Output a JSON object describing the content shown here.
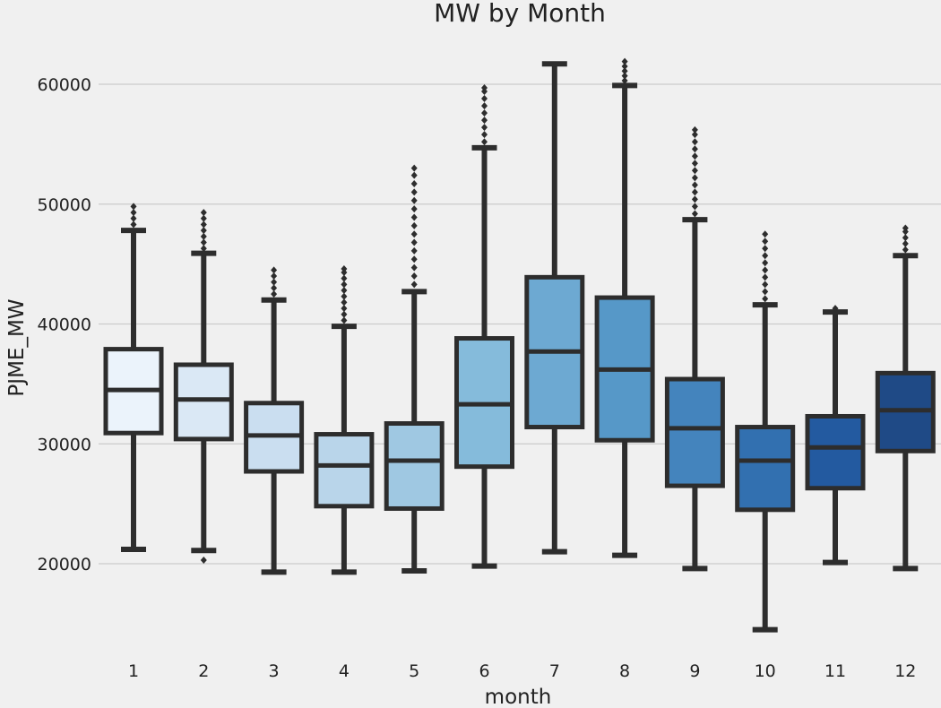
{
  "chart_data": {
    "type": "box",
    "title": "MW by Month",
    "xlabel": "month",
    "ylabel": "PJME_MW",
    "ylim": [
      13000,
      63500
    ],
    "yticks": [
      20000,
      30000,
      40000,
      50000,
      60000
    ],
    "grid": "horizontal",
    "categories": [
      "1",
      "2",
      "3",
      "4",
      "5",
      "6",
      "7",
      "8",
      "9",
      "10",
      "11",
      "12"
    ],
    "colors": [
      "#ebf3fb",
      "#dae8f5",
      "#cadef0",
      "#b9d5ea",
      "#9fc8e2",
      "#85bbdb",
      "#6da9d2",
      "#5698c8",
      "#4484bd",
      "#3270b0",
      "#235aa0",
      "#1f4a86"
    ],
    "edge_color": "#2d2d2d",
    "boxes": [
      {
        "month": "1",
        "whisker_low": 21200,
        "q1": 30900,
        "median": 34500,
        "q3": 37900,
        "whisker_high": 47800,
        "outliers_high": [
          48300,
          48800,
          49300,
          49800
        ]
      },
      {
        "month": "2",
        "whisker_low": 21100,
        "q1": 30400,
        "median": 33700,
        "q3": 36600,
        "whisker_high": 45900,
        "outliers_low": [
          20300
        ],
        "outliers_high": [
          46300,
          46800,
          47300,
          47800,
          48300,
          48800,
          49300
        ]
      },
      {
        "month": "3",
        "whisker_low": 19300,
        "q1": 27700,
        "median": 30700,
        "q3": 33400,
        "whisker_high": 42000,
        "outliers_high": [
          42500,
          43000,
          43500,
          44000,
          44500
        ]
      },
      {
        "month": "4",
        "whisker_low": 19300,
        "q1": 24800,
        "median": 28200,
        "q3": 30800,
        "whisker_high": 39800,
        "outliers_high": [
          40300,
          40800,
          41300,
          41800,
          42300,
          42800,
          43300,
          43800,
          44300,
          44600
        ]
      },
      {
        "month": "5",
        "whisker_low": 19400,
        "q1": 24600,
        "median": 28600,
        "q3": 31700,
        "whisker_high": 42700,
        "outliers_high": [
          43300,
          44000,
          44700,
          45400,
          46100,
          46800,
          47500,
          48200,
          48900,
          49600,
          50300,
          51000,
          51700,
          52400,
          53000
        ]
      },
      {
        "month": "6",
        "whisker_low": 19800,
        "q1": 28100,
        "median": 33300,
        "q3": 38800,
        "whisker_high": 54700,
        "outliers_high": [
          55200,
          55800,
          56400,
          57000,
          57600,
          58200,
          58800,
          59400,
          59700
        ]
      },
      {
        "month": "7",
        "whisker_low": 21000,
        "q1": 31400,
        "median": 37700,
        "q3": 43900,
        "whisker_high": 61700,
        "outliers_high": []
      },
      {
        "month": "8",
        "whisker_low": 20700,
        "q1": 30300,
        "median": 36200,
        "q3": 42200,
        "whisker_high": 59900,
        "outliers_high": [
          60300,
          60700,
          61100,
          61500,
          61900
        ]
      },
      {
        "month": "9",
        "whisker_low": 19600,
        "q1": 26500,
        "median": 31300,
        "q3": 35400,
        "whisker_high": 48700,
        "outliers_high": [
          49200,
          49800,
          50400,
          51000,
          51600,
          52200,
          52800,
          53400,
          54000,
          54600,
          55200,
          55800,
          56200
        ]
      },
      {
        "month": "10",
        "whisker_low": 14500,
        "q1": 24500,
        "median": 28600,
        "q3": 31400,
        "whisker_high": 41600,
        "outliers_high": [
          42100,
          42700,
          43300,
          43900,
          44500,
          45100,
          45700,
          46300,
          46900,
          47500
        ]
      },
      {
        "month": "11",
        "whisker_low": 20100,
        "q1": 26300,
        "median": 29700,
        "q3": 32300,
        "whisker_high": 41000,
        "outliers_high": [
          41300
        ]
      },
      {
        "month": "12",
        "whisker_low": 19600,
        "q1": 29400,
        "median": 32800,
        "q3": 35900,
        "whisker_high": 45700,
        "outliers_high": [
          46200,
          46700,
          47200,
          47700,
          48000
        ]
      }
    ]
  }
}
